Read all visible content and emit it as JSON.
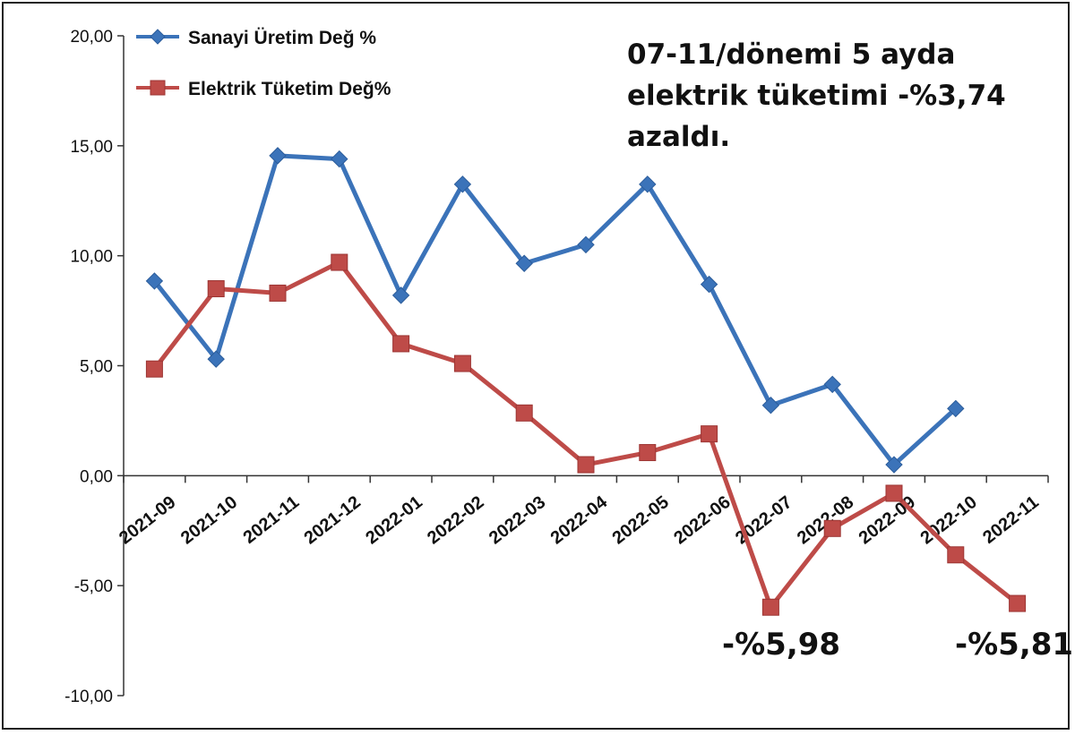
{
  "chart_data": {
    "type": "line",
    "categories": [
      "2021-09",
      "2021-10",
      "2021-11",
      "2021-12",
      "2022-01",
      "2022-02",
      "2022-03",
      "2022-04",
      "2022-05",
      "2022-06",
      "2022-07",
      "2022-08",
      "2022-09",
      "2022-10",
      "2022-11"
    ],
    "series": [
      {
        "name": "Sanayi Üretim Değ %",
        "color": "#3b73b9",
        "marker": "diamond",
        "values": [
          8.85,
          5.3,
          14.55,
          14.4,
          8.2,
          13.25,
          9.65,
          10.5,
          13.25,
          8.7,
          3.2,
          4.15,
          0.5,
          3.05,
          null
        ]
      },
      {
        "name": "Elektrik Tüketim Değ%",
        "color": "#be4b48",
        "marker": "square",
        "values": [
          4.85,
          8.5,
          8.3,
          9.7,
          6.0,
          5.1,
          2.85,
          0.5,
          1.05,
          1.9,
          -5.98,
          -2.4,
          -0.8,
          -3.6,
          -5.81
        ]
      }
    ],
    "ylim": [
      -10,
      20
    ],
    "yticks": [
      "-10,00",
      "-5,00",
      "0,00",
      "5,00",
      "10,00",
      "15,00",
      "20,00"
    ],
    "ytick_values": [
      -10,
      -5,
      0,
      5,
      10,
      15,
      20
    ],
    "legend_position": "top-left",
    "annotation": [
      "07-11/dönemi 5 ayda",
      "elektrik tüketimi -%3,74",
      "azaldı."
    ],
    "callouts": [
      "-%5,98",
      "-%5,81"
    ]
  }
}
